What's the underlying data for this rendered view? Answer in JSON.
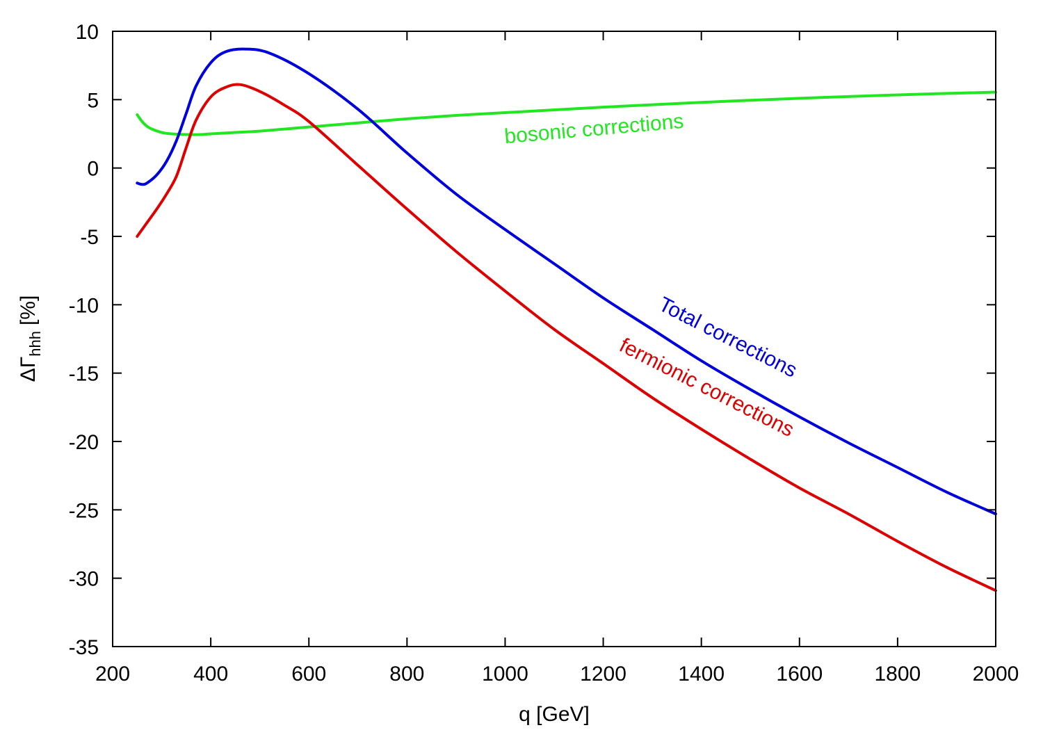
{
  "chart_data": {
    "type": "line",
    "title": "",
    "xlabel": "q [GeV]",
    "ylabel": {
      "symbol": "ΔΓ",
      "subscript": "hhh",
      "unit": "[%]"
    },
    "xlim": [
      200,
      2000
    ],
    "ylim": [
      -35,
      10
    ],
    "xticks": [
      200,
      400,
      600,
      800,
      1000,
      1200,
      1400,
      1600,
      1800,
      2000
    ],
    "xtick_labels": [
      "200",
      "400",
      "600",
      "800",
      "1000",
      "1200",
      "1400",
      "1600",
      "1800",
      "2000"
    ],
    "yticks": [
      10,
      5,
      0,
      -5,
      -10,
      -15,
      -20,
      -25,
      -30,
      -35
    ],
    "ytick_labels": [
      "10",
      "5",
      "0",
      "-5",
      "-10",
      "-15",
      "-20",
      "-25",
      "-30",
      "-35"
    ],
    "grid": false,
    "series": [
      {
        "name": "bosonic corrections",
        "label": "bosonic corrections",
        "color": "#22e622",
        "x": [
          250,
          260,
          270,
          280,
          300,
          320,
          350,
          380,
          400,
          450,
          500,
          600,
          700,
          800,
          900,
          1000,
          1200,
          1400,
          1600,
          1800,
          2000
        ],
        "y": [
          3.9,
          3.4,
          3.05,
          2.85,
          2.6,
          2.5,
          2.45,
          2.45,
          2.5,
          2.6,
          2.7,
          3.0,
          3.3,
          3.6,
          3.85,
          4.05,
          4.45,
          4.8,
          5.1,
          5.35,
          5.55
        ]
      },
      {
        "name": "Total corrections",
        "label": "Total corrections",
        "color": "#0000dd",
        "x": [
          250,
          260,
          270,
          290,
          310,
          330,
          350,
          370,
          400,
          430,
          470,
          520,
          600,
          700,
          800,
          900,
          1000,
          1100,
          1200,
          1300,
          1400,
          1500,
          1600,
          1700,
          1800,
          1900,
          2000
        ],
        "y": [
          -1.1,
          -1.2,
          -1.1,
          -0.5,
          0.5,
          2.0,
          4.0,
          6.0,
          7.7,
          8.5,
          8.7,
          8.4,
          6.9,
          4.3,
          1.1,
          -1.9,
          -4.5,
          -7.0,
          -9.5,
          -11.8,
          -14.1,
          -16.2,
          -18.2,
          -20.1,
          -21.9,
          -23.7,
          -25.3
        ]
      },
      {
        "name": "fermionic corrections",
        "label": "fermionic corrections",
        "color": "#dd0000",
        "x": [
          250,
          270,
          290,
          310,
          330,
          350,
          370,
          400,
          430,
          460,
          500,
          550,
          600,
          700,
          800,
          900,
          1000,
          1100,
          1200,
          1300,
          1400,
          1500,
          1600,
          1700,
          1800,
          1900,
          2000
        ],
        "y": [
          -5.0,
          -4.0,
          -3.0,
          -1.9,
          -0.6,
          1.5,
          3.5,
          5.2,
          5.9,
          6.1,
          5.6,
          4.6,
          3.4,
          0.2,
          -3.0,
          -6.1,
          -9.0,
          -11.8,
          -14.3,
          -16.8,
          -19.1,
          -21.3,
          -23.4,
          -25.3,
          -27.3,
          -29.2,
          -30.9
        ]
      }
    ],
    "annotations": [
      {
        "text": "bosonic corrections",
        "series": "bosonic corrections",
        "x": 1000,
        "y": 1.8,
        "angle_deg": -5
      },
      {
        "text": "Total corrections",
        "series": "Total corrections",
        "x": 1310,
        "y": -10.3,
        "angle_deg": 27
      },
      {
        "text": "fermionic corrections",
        "series": "fermionic corrections",
        "x": 1230,
        "y": -13.3,
        "angle_deg": 27
      }
    ]
  }
}
